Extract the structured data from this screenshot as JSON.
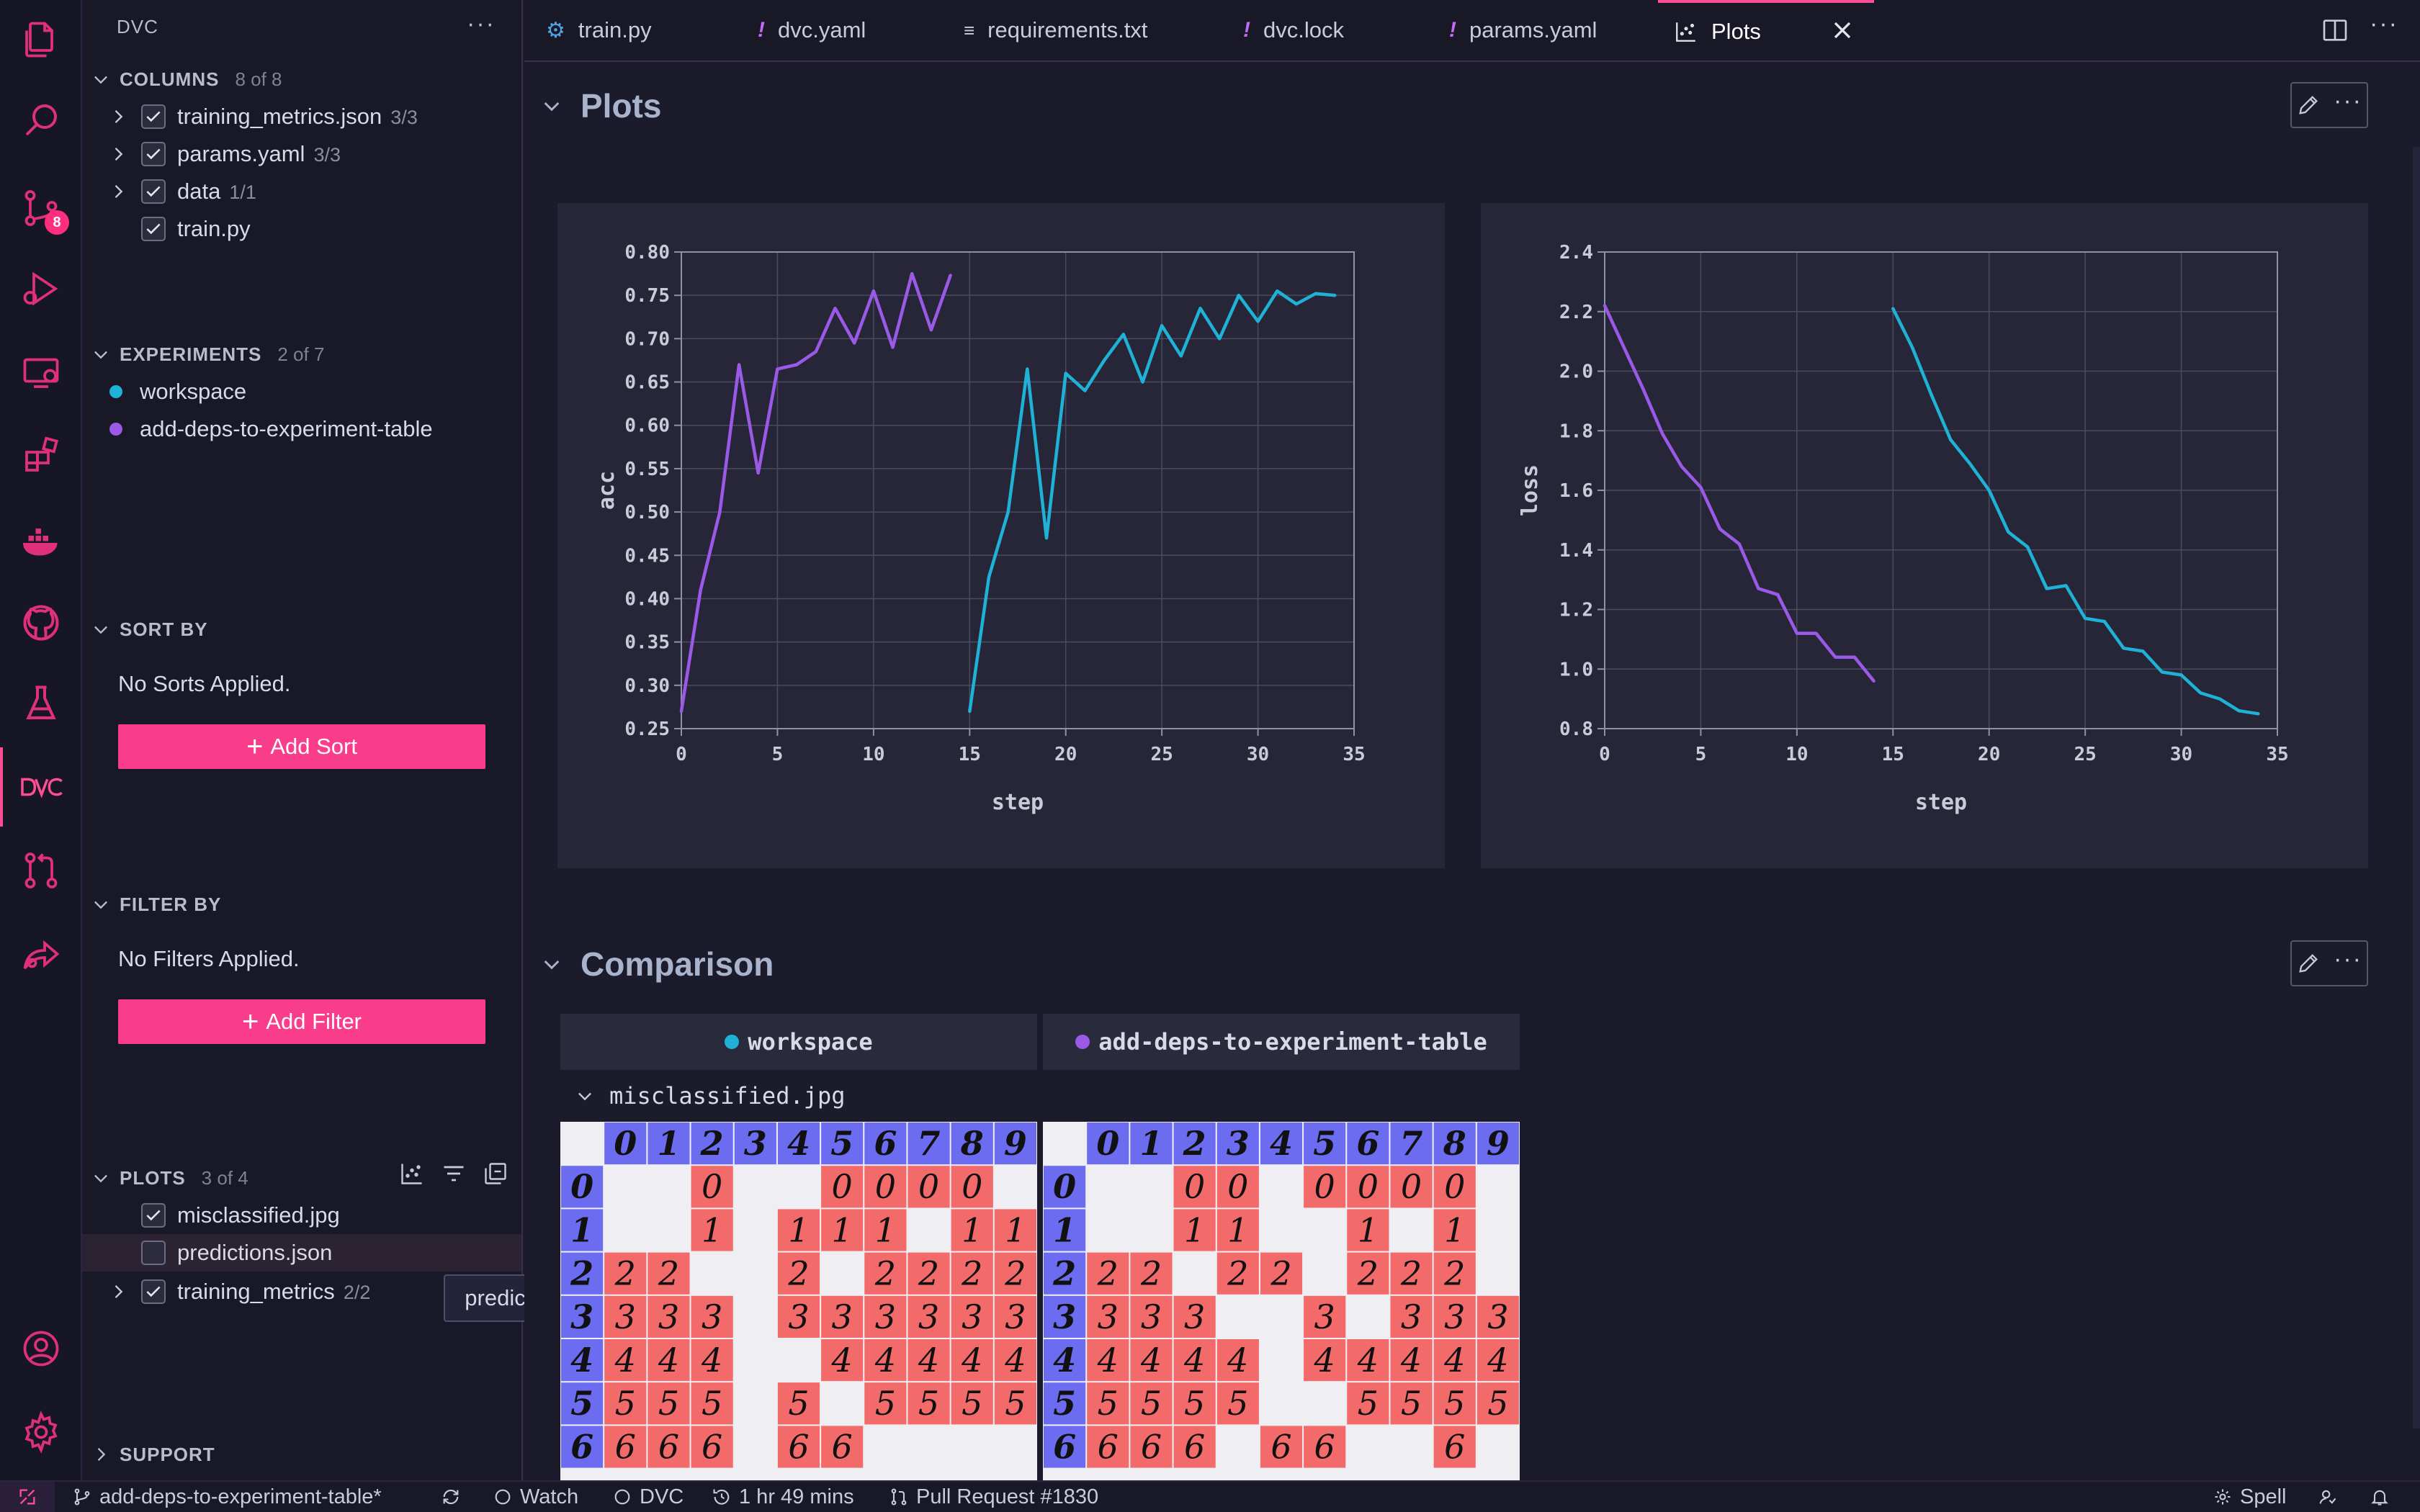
{
  "tabs": [
    {
      "label": "train.py",
      "icon": "python-icon"
    },
    {
      "label": "dvc.yaml",
      "icon": "yaml-icon"
    },
    {
      "label": "requirements.txt",
      "icon": "text-file-icon"
    },
    {
      "label": "dvc.lock",
      "icon": "yaml-icon"
    },
    {
      "label": "params.yaml",
      "icon": "yaml-icon"
    },
    {
      "label": "Plots",
      "icon": "plots-icon",
      "active": true
    }
  ],
  "sidebar": {
    "title": "DVC",
    "columns": {
      "heading": "COLUMNS",
      "count": "8 of 8",
      "items": [
        {
          "label": "training_metrics.json",
          "sub": "3/3"
        },
        {
          "label": "params.yaml",
          "sub": "3/3"
        },
        {
          "label": "data",
          "sub": "1/1"
        },
        {
          "label": "train.py",
          "sub": ""
        }
      ]
    },
    "experiments": {
      "heading": "EXPERIMENTS",
      "count": "2 of 7",
      "items": [
        {
          "label": "workspace",
          "color": "#1fb2d6"
        },
        {
          "label": "add-deps-to-experiment-table",
          "color": "#9b59e8"
        }
      ]
    },
    "sort": {
      "heading": "SORT BY",
      "empty": "No Sorts Applied.",
      "button": "Add Sort"
    },
    "filter": {
      "heading": "FILTER BY",
      "empty": "No Filters Applied.",
      "button": "Add Filter"
    },
    "plots": {
      "heading": "PLOTS",
      "count": "3 of 4",
      "items": [
        {
          "label": "misclassified.jpg",
          "sub": ""
        },
        {
          "label": "predictions.json",
          "sub": ""
        },
        {
          "label": "training_metrics",
          "sub": "2/2"
        }
      ]
    },
    "support": {
      "heading": "SUPPORT"
    },
    "tooltip": "predictions.json"
  },
  "main": {
    "plots_title": "Plots",
    "comparison_title": "Comparison",
    "comparison_columns": [
      {
        "label": "workspace",
        "color": "#1fb2d6"
      },
      {
        "label": "add-deps-to-experiment-table",
        "color": "#9b59e8"
      }
    ],
    "comparison_file": "misclassified.jpg"
  },
  "chart_data": [
    {
      "type": "line",
      "xlabel": "step",
      "ylabel": "acc",
      "xlim": [
        0,
        35
      ],
      "ylim": [
        0.25,
        0.8
      ],
      "xticks": [
        0,
        5,
        10,
        15,
        20,
        25,
        30,
        35
      ],
      "yticks": [
        0.25,
        0.3,
        0.35,
        0.4,
        0.45,
        0.5,
        0.55,
        0.6,
        0.65,
        0.7,
        0.75,
        0.8
      ],
      "grid": true,
      "series": [
        {
          "color": "#9b59e8",
          "x": [
            0,
            1,
            2,
            3,
            4,
            5,
            6,
            7,
            8,
            9,
            10,
            11,
            12,
            13,
            14
          ],
          "y": [
            0.27,
            0.41,
            0.5,
            0.67,
            0.545,
            0.665,
            0.67,
            0.685,
            0.735,
            0.695,
            0.755,
            0.69,
            0.775,
            0.71,
            0.773
          ]
        },
        {
          "color": "#1fb2d6",
          "x": [
            15,
            16,
            17,
            18,
            19,
            20,
            21,
            22,
            23,
            24,
            25,
            26,
            27,
            28,
            29,
            30,
            31,
            32,
            33,
            34
          ],
          "y": [
            0.27,
            0.425,
            0.5,
            0.665,
            0.47,
            0.66,
            0.64,
            0.675,
            0.705,
            0.65,
            0.715,
            0.68,
            0.735,
            0.7,
            0.75,
            0.72,
            0.755,
            0.74,
            0.752,
            0.75
          ]
        }
      ]
    },
    {
      "type": "line",
      "xlabel": "step",
      "ylabel": "loss",
      "xlim": [
        0,
        35
      ],
      "ylim": [
        0.8,
        2.4
      ],
      "xticks": [
        0,
        5,
        10,
        15,
        20,
        25,
        30,
        35
      ],
      "yticks": [
        0.8,
        1.0,
        1.2,
        1.4,
        1.6,
        1.8,
        2.0,
        2.2,
        2.4
      ],
      "grid": true,
      "series": [
        {
          "color": "#9b59e8",
          "x": [
            0,
            1,
            2,
            3,
            4,
            5,
            6,
            7,
            8,
            9,
            10,
            11,
            12,
            13,
            14
          ],
          "y": [
            2.22,
            2.08,
            1.94,
            1.79,
            1.68,
            1.61,
            1.47,
            1.42,
            1.27,
            1.25,
            1.12,
            1.12,
            1.04,
            1.04,
            0.96
          ]
        },
        {
          "color": "#1fb2d6",
          "x": [
            15,
            16,
            17,
            18,
            19,
            20,
            21,
            22,
            23,
            24,
            25,
            26,
            27,
            28,
            29,
            30,
            31,
            32,
            33,
            34
          ],
          "y": [
            2.21,
            2.08,
            1.92,
            1.77,
            1.69,
            1.6,
            1.46,
            1.41,
            1.27,
            1.28,
            1.17,
            1.16,
            1.07,
            1.06,
            0.99,
            0.98,
            0.92,
            0.9,
            0.86,
            0.85
          ]
        }
      ]
    }
  ],
  "digit_grids": [
    {
      "header": [
        "0",
        "1",
        "2",
        "3",
        "4",
        "5",
        "6",
        "7",
        "8",
        "9"
      ],
      "rows": [
        {
          "label": "0",
          "cells": [
            "",
            "",
            "0",
            "",
            "",
            "0",
            "0",
            "0",
            "0",
            ""
          ]
        },
        {
          "label": "1",
          "cells": [
            "",
            "",
            "1",
            "",
            "1",
            "1",
            "1",
            "",
            "1",
            "1"
          ]
        },
        {
          "label": "2",
          "cells": [
            "2",
            "2",
            "",
            "",
            "2",
            "",
            "2",
            "2",
            "2",
            "2"
          ]
        },
        {
          "label": "3",
          "cells": [
            "3",
            "3",
            "3",
            "",
            "3",
            "3",
            "3",
            "3",
            "3",
            "3"
          ]
        },
        {
          "label": "4",
          "cells": [
            "4",
            "4",
            "4",
            "",
            "",
            "4",
            "4",
            "4",
            "4",
            "4"
          ]
        },
        {
          "label": "5",
          "cells": [
            "5",
            "5",
            "5",
            "",
            "5",
            "",
            "5",
            "5",
            "5",
            "5"
          ]
        },
        {
          "label": "6",
          "cells": [
            "6",
            "6",
            "6",
            "",
            "6",
            "6",
            "",
            "",
            "",
            ""
          ]
        }
      ]
    },
    {
      "header": [
        "0",
        "1",
        "2",
        "3",
        "4",
        "5",
        "6",
        "7",
        "8",
        "9"
      ],
      "rows": [
        {
          "label": "0",
          "cells": [
            "",
            "",
            "0",
            "0",
            "",
            "0",
            "0",
            "0",
            "0",
            ""
          ]
        },
        {
          "label": "1",
          "cells": [
            "",
            "",
            "1",
            "1",
            "",
            "",
            "1",
            "",
            "1",
            ""
          ]
        },
        {
          "label": "2",
          "cells": [
            "2",
            "2",
            "",
            "2",
            "2",
            "",
            "2",
            "2",
            "2",
            ""
          ]
        },
        {
          "label": "3",
          "cells": [
            "3",
            "3",
            "3",
            "",
            "",
            "3",
            "",
            "3",
            "3",
            "3"
          ]
        },
        {
          "label": "4",
          "cells": [
            "4",
            "4",
            "4",
            "4",
            "",
            "4",
            "4",
            "4",
            "4",
            "4"
          ]
        },
        {
          "label": "5",
          "cells": [
            "5",
            "5",
            "5",
            "5",
            "",
            "",
            "5",
            "5",
            "5",
            "5"
          ]
        },
        {
          "label": "6",
          "cells": [
            "6",
            "6",
            "6",
            "",
            "6",
            "6",
            "",
            "",
            "6",
            ""
          ]
        }
      ]
    }
  ],
  "status": {
    "branch": "add-deps-to-experiment-table*",
    "watch": "Watch",
    "dvc": "DVC",
    "time": "1 hr 49 mins",
    "pr": "Pull Request #1830",
    "spell": "Spell"
  },
  "colors": {
    "accent": "#f93d8b",
    "workspace": "#1fb2d6",
    "experiment": "#9b59e8"
  }
}
